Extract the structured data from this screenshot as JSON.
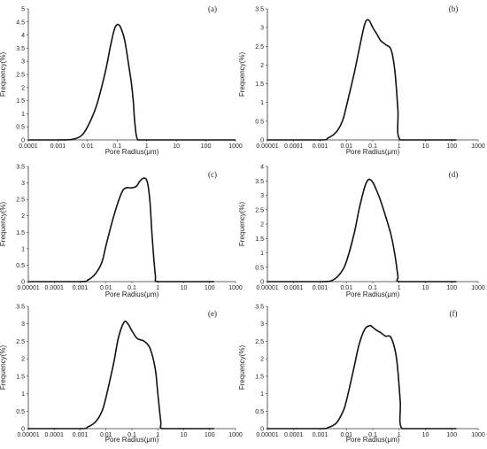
{
  "chart_data": [
    {
      "type": "line",
      "panel_label": "(a)",
      "xlabel": "Pore Radius(μm)",
      "ylabel": "Frequency(%)",
      "xscale": "log",
      "xlim": [
        0.0001,
        1000
      ],
      "ylim": [
        0,
        5
      ],
      "xticks": [
        "0.0001",
        "0.001",
        "0.01",
        "0.1",
        "1",
        "10",
        "100",
        "1000"
      ],
      "yticks": [
        "0",
        "0.5",
        "1",
        "1.5",
        "2",
        "2.5",
        "3",
        "3.5",
        "4",
        "4.5",
        "5"
      ],
      "series": [
        {
          "x": [
            0.0001,
            0.001,
            0.003,
            0.006,
            0.01,
            0.02,
            0.04,
            0.06,
            0.08,
            0.1,
            0.13,
            0.18,
            0.25,
            0.3,
            0.35,
            0.4,
            0.5,
            1,
            10,
            1000
          ],
          "y": [
            0,
            0,
            0.02,
            0.15,
            0.5,
            1.3,
            2.6,
            3.6,
            4.2,
            4.4,
            4.3,
            3.8,
            2.8,
            2.2,
            1.5,
            0.6,
            0,
            0,
            0,
            0
          ]
        }
      ]
    },
    {
      "type": "line",
      "panel_label": "(b)",
      "xlabel": "Pore Radius(μm)",
      "ylabel": "Frequency(%)",
      "xscale": "log",
      "xlim": [
        1e-05,
        1000
      ],
      "ylim": [
        0,
        3.5
      ],
      "xticks": [
        "0.00001",
        "0.0001",
        "0.001",
        "0.01",
        "0.1",
        "1",
        "10",
        "100",
        "1000"
      ],
      "yticks": [
        "0",
        "0.5",
        "1",
        "1.5",
        "2",
        "2.5",
        "3",
        "3.5"
      ],
      "series": [
        {
          "x": [
            1e-05,
            0.001,
            0.002,
            0.004,
            0.007,
            0.01,
            0.02,
            0.03,
            0.05,
            0.07,
            0.1,
            0.15,
            0.2,
            0.3,
            0.5,
            0.7,
            0.9,
            1.1,
            10,
            100,
            150
          ],
          "y": [
            0,
            0,
            0.05,
            0.2,
            0.5,
            0.9,
            1.8,
            2.4,
            3.1,
            3.2,
            3.0,
            2.8,
            2.65,
            2.55,
            2.4,
            1.8,
            0.8,
            0,
            0,
            0,
            0
          ]
        }
      ]
    },
    {
      "type": "line",
      "panel_label": "(c)",
      "xlabel": "Pore Radius(μm)",
      "ylabel": "Frequency(%)",
      "xscale": "log",
      "xlim": [
        1e-05,
        1000
      ],
      "ylim": [
        0,
        3.5
      ],
      "xticks": [
        "0.00001",
        "0.0001",
        "0.001",
        "0.01",
        "0.1",
        "1",
        "10",
        "100",
        "1000"
      ],
      "yticks": [
        "0",
        "0.5",
        "1",
        "1.5",
        "2",
        "2.5",
        "3",
        "3.5"
      ],
      "series": [
        {
          "x": [
            1e-05,
            0.001,
            0.002,
            0.004,
            0.007,
            0.01,
            0.02,
            0.04,
            0.06,
            0.1,
            0.15,
            0.2,
            0.3,
            0.4,
            0.5,
            0.6,
            0.8,
            1,
            10,
            100,
            150
          ],
          "y": [
            0,
            0,
            0.05,
            0.25,
            0.6,
            1.1,
            2.0,
            2.7,
            2.85,
            2.85,
            2.9,
            3.05,
            3.15,
            3.0,
            2.4,
            1.4,
            0.2,
            0,
            0,
            0,
            0
          ]
        }
      ]
    },
    {
      "type": "line",
      "panel_label": "(d)",
      "xlabel": "Pore Radius(μm)",
      "ylabel": "Frequency(%)",
      "xscale": "log",
      "xlim": [
        1e-05,
        1000
      ],
      "ylim": [
        0,
        4
      ],
      "xticks": [
        "0.00001",
        "0.0001",
        "0.001",
        "0.01",
        "0.1",
        "1",
        "10",
        "100",
        "1000"
      ],
      "yticks": [
        "0",
        "0.5",
        "1",
        "1.5",
        "2",
        "2.5",
        "3",
        "3.5",
        "4"
      ],
      "series": [
        {
          "x": [
            1e-05,
            0.001,
            0.003,
            0.006,
            0.01,
            0.02,
            0.03,
            0.05,
            0.07,
            0.1,
            0.15,
            0.2,
            0.3,
            0.5,
            0.7,
            0.9,
            1,
            10,
            100,
            150
          ],
          "y": [
            0,
            0,
            0.05,
            0.3,
            0.7,
            1.7,
            2.5,
            3.3,
            3.55,
            3.45,
            3.1,
            2.8,
            2.3,
            1.6,
            0.9,
            0.2,
            0,
            0,
            0,
            0
          ]
        }
      ]
    },
    {
      "type": "line",
      "panel_label": "(e)",
      "xlabel": "Pore Radius(μm)",
      "ylabel": "Frequency(%)",
      "xscale": "log",
      "xlim": [
        1e-05,
        1000
      ],
      "ylim": [
        0,
        3.5
      ],
      "xticks": [
        "0.00001",
        "0.0001",
        "0.001",
        "0.01",
        "0.1",
        "1",
        "10",
        "100",
        "1000"
      ],
      "yticks": [
        "0",
        "0.5",
        "1",
        "1.5",
        "2",
        "2.5",
        "3",
        "3.5"
      ],
      "series": [
        {
          "x": [
            1e-05,
            0.001,
            0.002,
            0.004,
            0.007,
            0.01,
            0.02,
            0.03,
            0.05,
            0.07,
            0.1,
            0.15,
            0.2,
            0.3,
            0.5,
            0.8,
            1,
            1.3,
            1.5,
            10,
            100,
            150
          ],
          "y": [
            0,
            0,
            0.05,
            0.2,
            0.5,
            0.9,
            1.9,
            2.6,
            3.05,
            3.0,
            2.8,
            2.6,
            2.55,
            2.5,
            2.3,
            1.7,
            1.0,
            0.2,
            0,
            0,
            0,
            0
          ]
        }
      ]
    },
    {
      "type": "line",
      "panel_label": "(f)",
      "xlabel": "Pore Radius(μm)",
      "ylabel": "Frequency(%)",
      "xscale": "log",
      "xlim": [
        1e-05,
        1000
      ],
      "ylim": [
        0,
        3.5
      ],
      "xticks": [
        "0.00001",
        "0.0001",
        "0.001",
        "0.01",
        "0.1",
        "1",
        "10",
        "100",
        "1000"
      ],
      "yticks": [
        "0",
        "0.5",
        "1",
        "1.5",
        "2",
        "2.5",
        "3",
        "3.5"
      ],
      "series": [
        {
          "x": [
            1e-05,
            0.001,
            0.002,
            0.004,
            0.007,
            0.01,
            0.02,
            0.03,
            0.05,
            0.08,
            0.1,
            0.15,
            0.2,
            0.3,
            0.5,
            0.8,
            1.1,
            1.3,
            10,
            100,
            150
          ],
          "y": [
            0,
            0,
            0.03,
            0.15,
            0.45,
            0.8,
            1.8,
            2.4,
            2.85,
            2.95,
            2.9,
            2.8,
            2.75,
            2.65,
            2.6,
            2.0,
            0.8,
            0,
            0,
            0,
            0
          ]
        }
      ]
    }
  ]
}
